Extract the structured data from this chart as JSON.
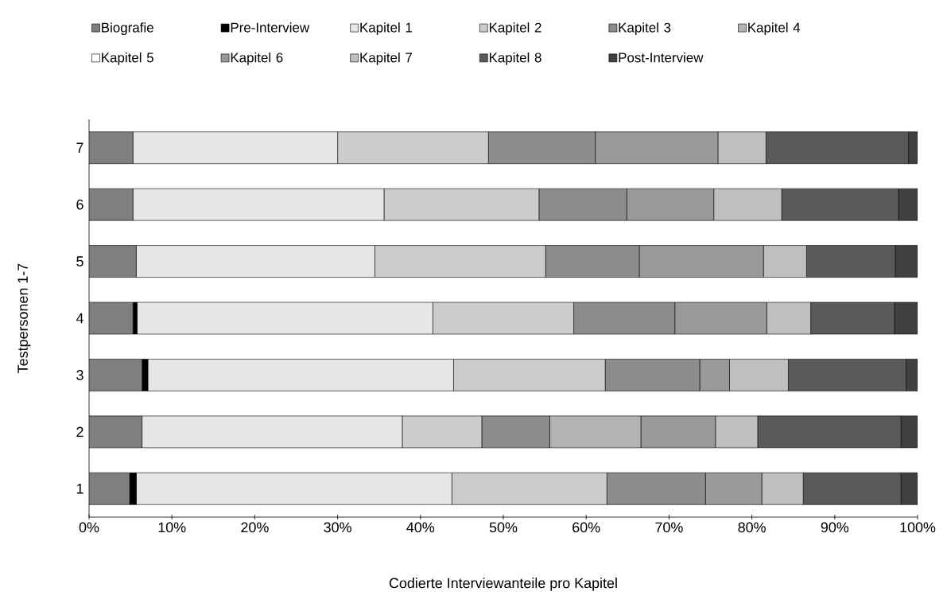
{
  "chart_data": {
    "type": "bar",
    "orientation": "horizontal",
    "stacked": true,
    "xlabel": "Codierte Interviewanteile pro Kapitel",
    "ylabel": "Testpersonen 1-7",
    "categories": [
      "7",
      "6",
      "5",
      "4",
      "3",
      "2",
      "1"
    ],
    "xlim": [
      0,
      100
    ],
    "xticks": [
      {
        "value": 0,
        "label": "0%"
      },
      {
        "value": 10,
        "label": "10%"
      },
      {
        "value": 20,
        "label": "20%"
      },
      {
        "value": 30,
        "label": "30%"
      },
      {
        "value": 40,
        "label": "40%"
      },
      {
        "value": 50,
        "label": "50%"
      },
      {
        "value": 60,
        "label": "60%"
      },
      {
        "value": 70,
        "label": "70%"
      },
      {
        "value": 80,
        "label": "80%"
      },
      {
        "value": 90,
        "label": "90%"
      },
      {
        "value": 100,
        "label": "100%"
      }
    ],
    "legend": "top",
    "grid": false,
    "series": [
      {
        "name": "Biografie",
        "color": "#7f7f7f",
        "values": [
          5.3,
          5.3,
          5.7,
          5.3,
          6.4,
          6.4,
          4.9
        ]
      },
      {
        "name": "Pre-Interview",
        "color": "#000000",
        "values": [
          0,
          0,
          0,
          0.5,
          0.7,
          0,
          0.8
        ]
      },
      {
        "name": "Kapitel 1",
        "color": "#e6e6e6",
        "values": [
          24.7,
          30.3,
          28.8,
          35.7,
          36.9,
          31.4,
          38.1
        ]
      },
      {
        "name": "Kapitel 2",
        "color": "#cccccc",
        "values": [
          18.2,
          18.7,
          20.6,
          17.0,
          18.3,
          9.6,
          18.7
        ]
      },
      {
        "name": "Kapitel 3",
        "color": "#8c8c8c",
        "values": [
          12.9,
          10.6,
          11.3,
          12.2,
          11.4,
          8.2,
          11.9
        ]
      },
      {
        "name": "Kapitel 4",
        "color": "#b3b3b3",
        "values": [
          0,
          0,
          0,
          0,
          0,
          11.0,
          0
        ]
      },
      {
        "name": "Kapitel 5",
        "color": "#ffffff",
        "values": [
          0,
          0,
          0,
          0,
          0,
          0,
          0
        ]
      },
      {
        "name": "Kapitel 6",
        "color": "#999999",
        "values": [
          14.8,
          10.5,
          15.0,
          11.1,
          3.6,
          9.0,
          6.8
        ]
      },
      {
        "name": "Kapitel 7",
        "color": "#bfbfbf",
        "values": [
          5.8,
          8.2,
          5.2,
          5.3,
          7.1,
          5.1,
          5.0
        ]
      },
      {
        "name": "Kapitel 8",
        "color": "#5a5a5a",
        "values": [
          17.2,
          14.1,
          10.7,
          10.1,
          14.2,
          17.3,
          11.8
        ]
      },
      {
        "name": "Post-Interview",
        "color": "#404040",
        "values": [
          1.1,
          2.3,
          2.7,
          2.8,
          1.4,
          2.0,
          2.0
        ]
      }
    ]
  }
}
